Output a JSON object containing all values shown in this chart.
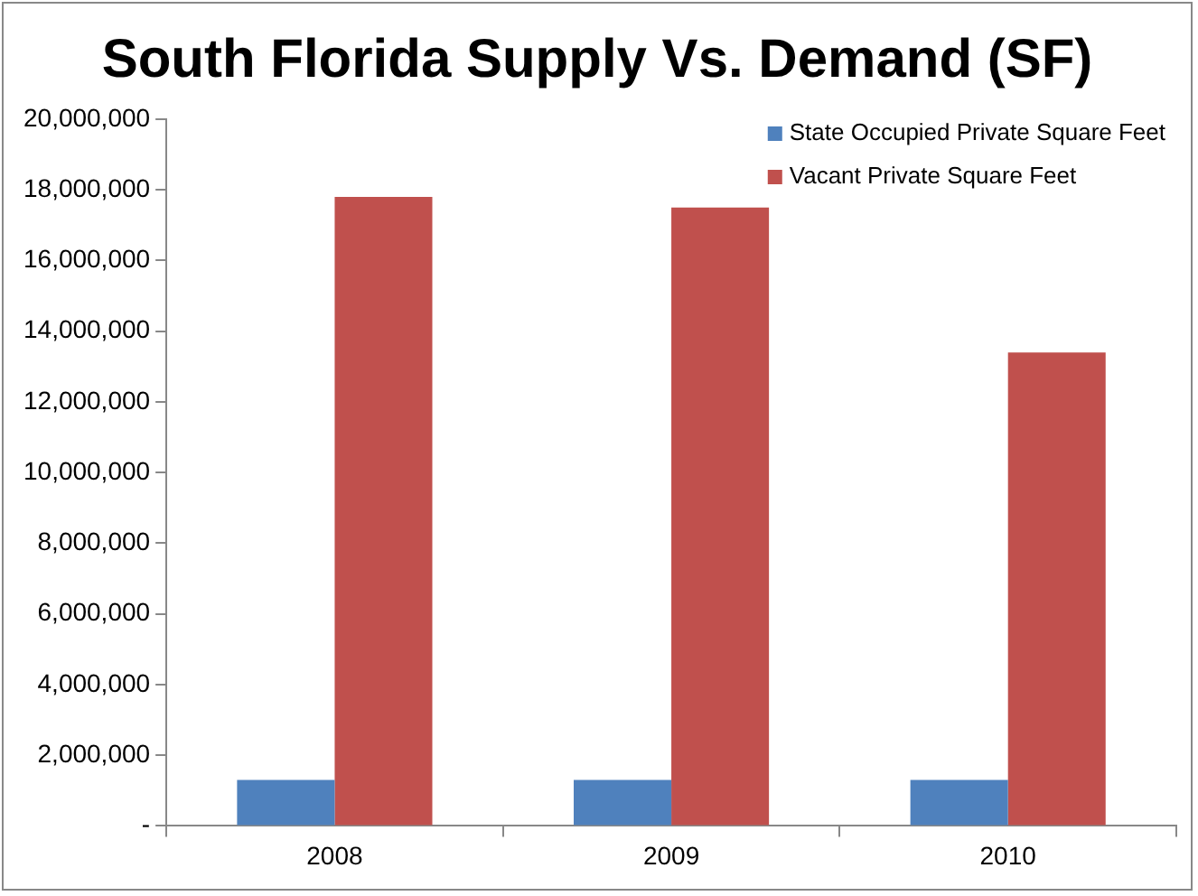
{
  "chart_data": {
    "type": "bar",
    "title": "South Florida Supply Vs. Demand (SF)",
    "categories": [
      "2008",
      "2009",
      "2010"
    ],
    "series": [
      {
        "name": "State Occupied Private Square Feet",
        "color": "#4f81bd",
        "values": [
          1300000,
          1300000,
          1300000
        ]
      },
      {
        "name": "Vacant Private Square Feet",
        "color": "#c0504d",
        "values": [
          17800000,
          17500000,
          13400000
        ]
      }
    ],
    "ylim": [
      0,
      20000000
    ],
    "yticks": [
      {
        "value": 0,
        "label": "-"
      },
      {
        "value": 2000000,
        "label": "2,000,000"
      },
      {
        "value": 4000000,
        "label": "4,000,000"
      },
      {
        "value": 6000000,
        "label": "6,000,000"
      },
      {
        "value": 8000000,
        "label": "8,000,000"
      },
      {
        "value": 10000000,
        "label": "10,000,000"
      },
      {
        "value": 12000000,
        "label": "12,000,000"
      },
      {
        "value": 14000000,
        "label": "14,000,000"
      },
      {
        "value": 16000000,
        "label": "16,000,000"
      },
      {
        "value": 18000000,
        "label": "18,000,000"
      },
      {
        "value": 20000000,
        "label": "20,000,000"
      }
    ],
    "grid": false,
    "legend": "top right"
  }
}
